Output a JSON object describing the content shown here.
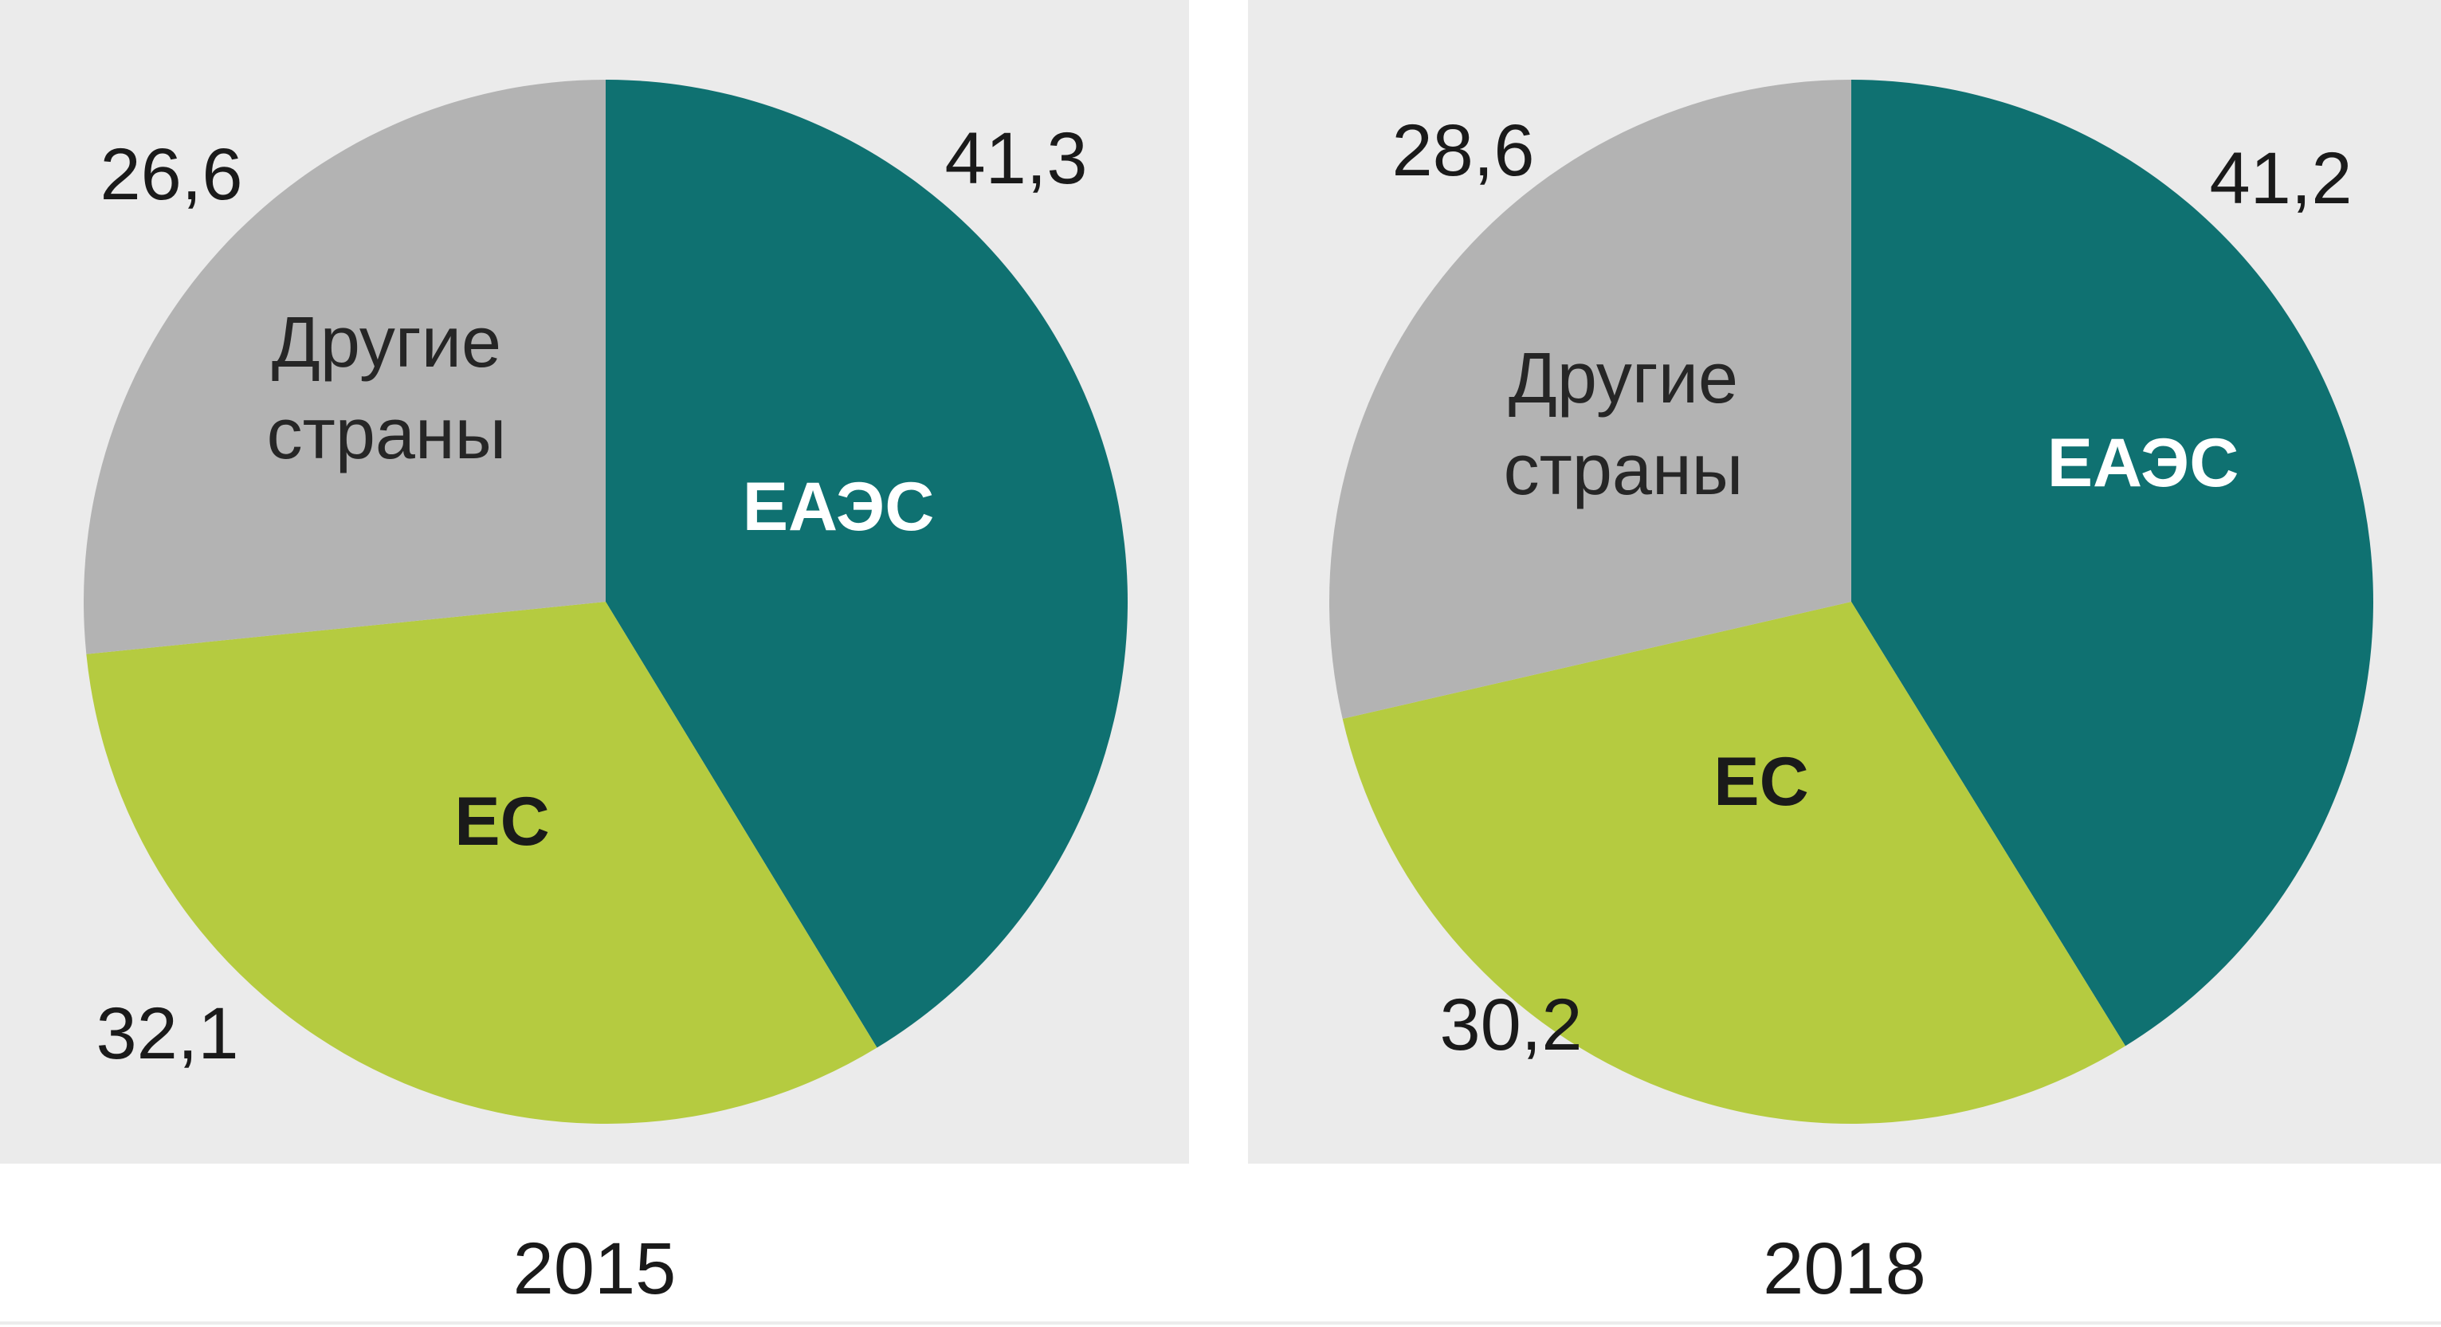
{
  "chart_data": [
    {
      "type": "pie",
      "title": "2015",
      "categories": [
        "ЕАЭС",
        "ЕС",
        "Другие страны"
      ],
      "values": [
        41.3,
        32.1,
        26.6
      ],
      "value_labels": [
        "41,3",
        "32,1",
        "26,6"
      ],
      "colors": [
        "#0f7171",
        "#b5cb40",
        "#b3b3b3"
      ],
      "label_colors": [
        "#ffffff",
        "#1a1a1a",
        "#262626"
      ],
      "label_weights": [
        "bold",
        "bold",
        "normal"
      ],
      "category_lines": [
        [
          "ЕАЭС"
        ],
        [
          "ЕС"
        ],
        [
          "Другие",
          "страны"
        ]
      ],
      "start_angle_deg": 0,
      "direction": "clockwise"
    },
    {
      "type": "pie",
      "title": "2018",
      "categories": [
        "ЕАЭС",
        "ЕС",
        "Другие страны"
      ],
      "values": [
        41.2,
        30.2,
        28.6
      ],
      "value_labels": [
        "41,2",
        "30,2",
        "28,6"
      ],
      "colors": [
        "#0f7171",
        "#b5cb40",
        "#b3b3b3"
      ],
      "label_colors": [
        "#ffffff",
        "#1a1a1a",
        "#262626"
      ],
      "label_weights": [
        "bold",
        "bold",
        "normal"
      ],
      "category_lines": [
        [
          "ЕАЭС"
        ],
        [
          "ЕС"
        ],
        [
          "Другие",
          "страны"
        ]
      ],
      "start_angle_deg": 0,
      "direction": "clockwise"
    }
  ]
}
